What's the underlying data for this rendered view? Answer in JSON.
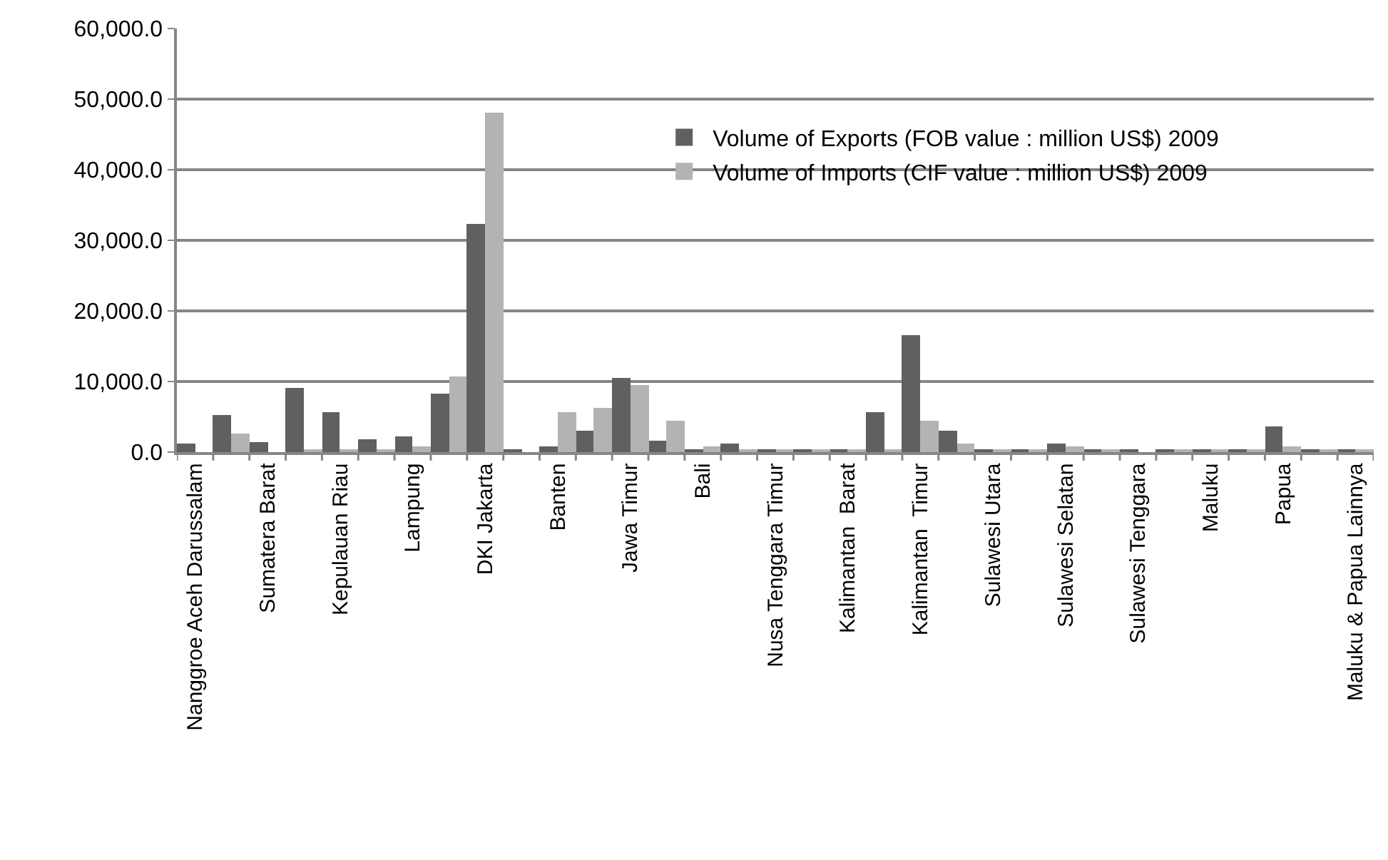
{
  "chart_data": {
    "type": "bar",
    "categories": [
      "Nanggroe Aceh Darussalam",
      null,
      "Sumatera Barat",
      null,
      "Kepulauan Riau",
      null,
      "Lampung",
      null,
      "DKI Jakarta",
      null,
      "Banten",
      null,
      "Jawa Timur",
      null,
      "Bali",
      null,
      "Nusa Tenggara Timur",
      null,
      "Kalimantan  Barat",
      null,
      "Kalimantan  Timur",
      null,
      "Sulawesi Utara",
      null,
      "Sulawesi Selatan",
      null,
      "Sulawesi Tenggara",
      null,
      "Maluku",
      null,
      "Papua",
      null,
      "Maluku & Papua Lainnya"
    ],
    "series": [
      {
        "name": "Volume of Exports (FOB value : million US$) 2009",
        "color": "#606060",
        "values": [
          1200,
          5300,
          1500,
          9000,
          5600,
          1900,
          2200,
          8300,
          32400,
          500,
          800,
          3000,
          10500,
          1600,
          300,
          1200,
          500,
          400,
          400,
          5600,
          16500,
          3000,
          500,
          500,
          1200,
          500,
          500,
          500,
          500,
          500,
          3700,
          500,
          500
        ]
      },
      {
        "name": "Volume of Imports (CIF value : million US$) 2009",
        "color": "#b3b3b3",
        "values": [
          0,
          2700,
          0,
          300,
          300,
          300,
          800,
          10800,
          48000,
          0,
          5600,
          6300,
          9400,
          4500,
          800,
          300,
          300,
          300,
          300,
          300,
          4500,
          1200,
          300,
          300,
          900,
          300,
          null,
          300,
          300,
          300,
          900,
          300,
          300
        ]
      }
    ],
    "ylim": [
      0,
      60000
    ],
    "yticks": [
      {
        "value": 0,
        "label": "0.0"
      },
      {
        "value": 10000,
        "label": "10,000.0"
      },
      {
        "value": 20000,
        "label": "20,000.0"
      },
      {
        "value": 30000,
        "label": "30,000.0"
      },
      {
        "value": 40000,
        "label": "40,000.0"
      },
      {
        "value": 50000,
        "label": "50,000.0"
      },
      {
        "value": 60000,
        "label": "60,000.0"
      }
    ],
    "grid": "y",
    "legend": "top right"
  }
}
